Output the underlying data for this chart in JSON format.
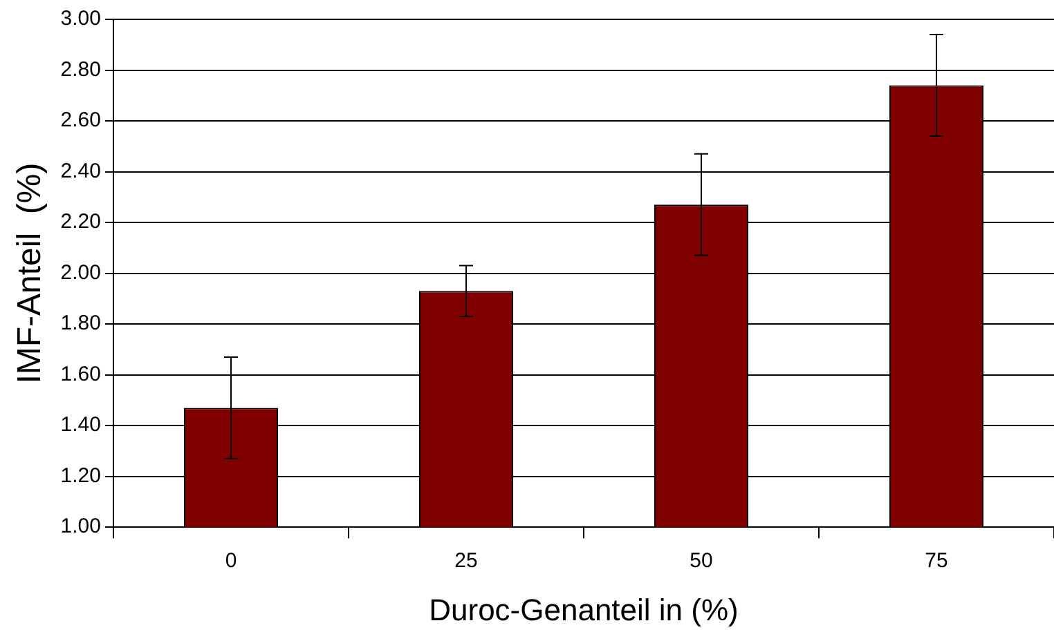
{
  "chart_data": {
    "type": "bar",
    "xlabel": "Duroc-Genanteil in (%)",
    "ylabel": "IMF-Anteil  (%)",
    "categories": [
      "0",
      "25",
      "50",
      "75"
    ],
    "values": [
      1.47,
      1.93,
      2.27,
      2.74
    ],
    "errors": [
      0.2,
      0.1,
      0.2,
      0.2
    ],
    "color": "#800000",
    "ylim": [
      1,
      3
    ],
    "yticks": [
      {
        "value": 1,
        "label": "1.00"
      },
      {
        "value": 1.2,
        "label": "1.20"
      },
      {
        "value": 1.4,
        "label": "1.40"
      },
      {
        "value": 1.6,
        "label": "1.60"
      },
      {
        "value": 1.8,
        "label": "1.80"
      },
      {
        "value": 2,
        "label": "2.00"
      },
      {
        "value": 2.2,
        "label": "2.20"
      },
      {
        "value": 2.4,
        "label": "2.40"
      },
      {
        "value": 2.6,
        "label": "2.60"
      },
      {
        "value": 2.8,
        "label": "2.80"
      },
      {
        "value": 3,
        "label": "3.00"
      }
    ],
    "grid": "y",
    "legend": false
  }
}
